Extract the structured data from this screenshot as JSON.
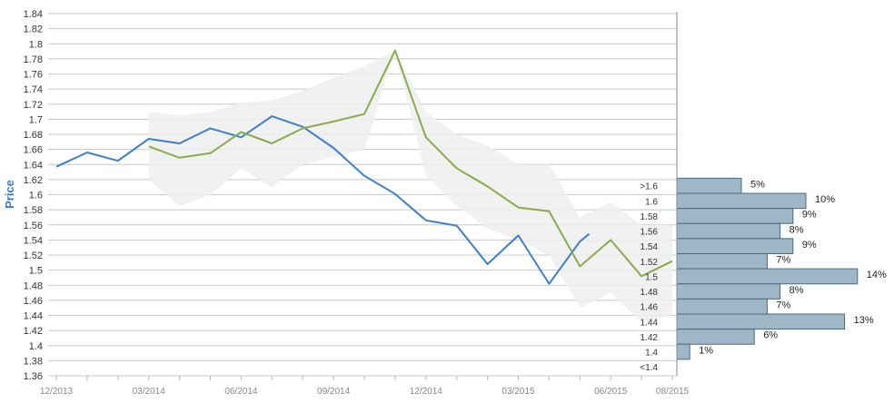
{
  "chart_data": {
    "type": "line",
    "ylabel": "Price",
    "xlabel": "",
    "ylim": [
      1.36,
      1.84
    ],
    "y_ticks": [
      "1.36",
      "1.38",
      "1.4",
      "1.42",
      "1.44",
      "1.46",
      "1.48",
      "1.5",
      "1.52",
      "1.54",
      "1.56",
      "1.58",
      "1.6",
      "1.62",
      "1.64",
      "1.66",
      "1.68",
      "1.7",
      "1.72",
      "1.74",
      "1.76",
      "1.78",
      "1.8",
      "1.82",
      "1.84"
    ],
    "x_ticks": [
      "12/2013",
      "03/2014",
      "06/2014",
      "09/2014",
      "12/2014",
      "03/2015",
      "06/2015",
      "08/2015"
    ],
    "x_tick_positions": [
      0,
      3,
      6,
      9,
      12,
      15,
      18,
      20
    ],
    "grid": true,
    "colors": {
      "history": "#3a7fd0",
      "consensus": "#8aab4a",
      "band": "#eeeeee",
      "hist_bar": "#9fb6c6",
      "hist_edge": "#4a6a82"
    },
    "series": [
      {
        "role": "history",
        "x": [
          0,
          1,
          2,
          3,
          4,
          5,
          6,
          7,
          8,
          9,
          10,
          11,
          12,
          13,
          14,
          15,
          16,
          17
        ],
        "values": [
          1.637,
          1.656,
          1.645,
          1.674,
          1.668,
          1.688,
          1.676,
          1.704,
          1.69,
          1.662,
          1.625,
          1.601,
          1.566,
          1.559,
          1.508,
          1.546,
          1.482,
          1.538
        ]
      },
      {
        "role": "consensus",
        "x": [
          3,
          4,
          5,
          6,
          7,
          8,
          9,
          10,
          11,
          12,
          13,
          14,
          15,
          16,
          17,
          18,
          19,
          20
        ],
        "values": [
          1.664,
          1.649,
          1.655,
          1.683,
          1.668,
          1.688,
          1.697,
          1.707,
          1.791,
          1.676,
          1.635,
          1.611,
          1.583,
          1.578,
          1.505,
          1.54,
          1.492,
          1.512
        ]
      }
    ],
    "extension": {
      "x": [
        17,
        17.3
      ],
      "values": [
        1.538,
        1.548
      ]
    },
    "band": {
      "x": [
        3,
        4,
        5,
        6,
        7,
        8,
        9,
        10,
        11,
        12,
        13,
        14,
        15,
        16,
        17,
        18,
        19,
        20
      ],
      "upper": [
        1.71,
        1.705,
        1.71,
        1.722,
        1.725,
        1.738,
        1.755,
        1.77,
        1.791,
        1.71,
        1.68,
        1.665,
        1.64,
        1.64,
        1.57,
        1.59,
        1.56,
        1.56
      ],
      "lower": [
        1.62,
        1.585,
        1.6,
        1.635,
        1.61,
        1.64,
        1.65,
        1.66,
        1.791,
        1.625,
        1.585,
        1.555,
        1.54,
        1.52,
        1.45,
        1.47,
        1.43,
        1.44
      ]
    },
    "distribution": [
      {
        "label": ">1.6",
        "percent_label": "5%",
        "value": 5
      },
      {
        "label": "1.6",
        "percent_label": "10%",
        "value": 10
      },
      {
        "label": "1.58",
        "percent_label": "9%",
        "value": 9
      },
      {
        "label": "1.56",
        "percent_label": "8%",
        "value": 8
      },
      {
        "label": "1.54",
        "percent_label": "9%",
        "value": 9
      },
      {
        "label": "1.52",
        "percent_label": "7%",
        "value": 7
      },
      {
        "label": "1.5",
        "percent_label": "14%",
        "value": 14
      },
      {
        "label": "1.48",
        "percent_label": "8%",
        "value": 8
      },
      {
        "label": "1.46",
        "percent_label": "7%",
        "value": 7
      },
      {
        "label": "1.44",
        "percent_label": "13%",
        "value": 13
      },
      {
        "label": "1.42",
        "percent_label": "6%",
        "value": 6
      },
      {
        "label": "1.4",
        "percent_label": "1%",
        "value": 1
      },
      {
        "label": "<1.4",
        "percent_label": "",
        "value": 0
      }
    ]
  }
}
